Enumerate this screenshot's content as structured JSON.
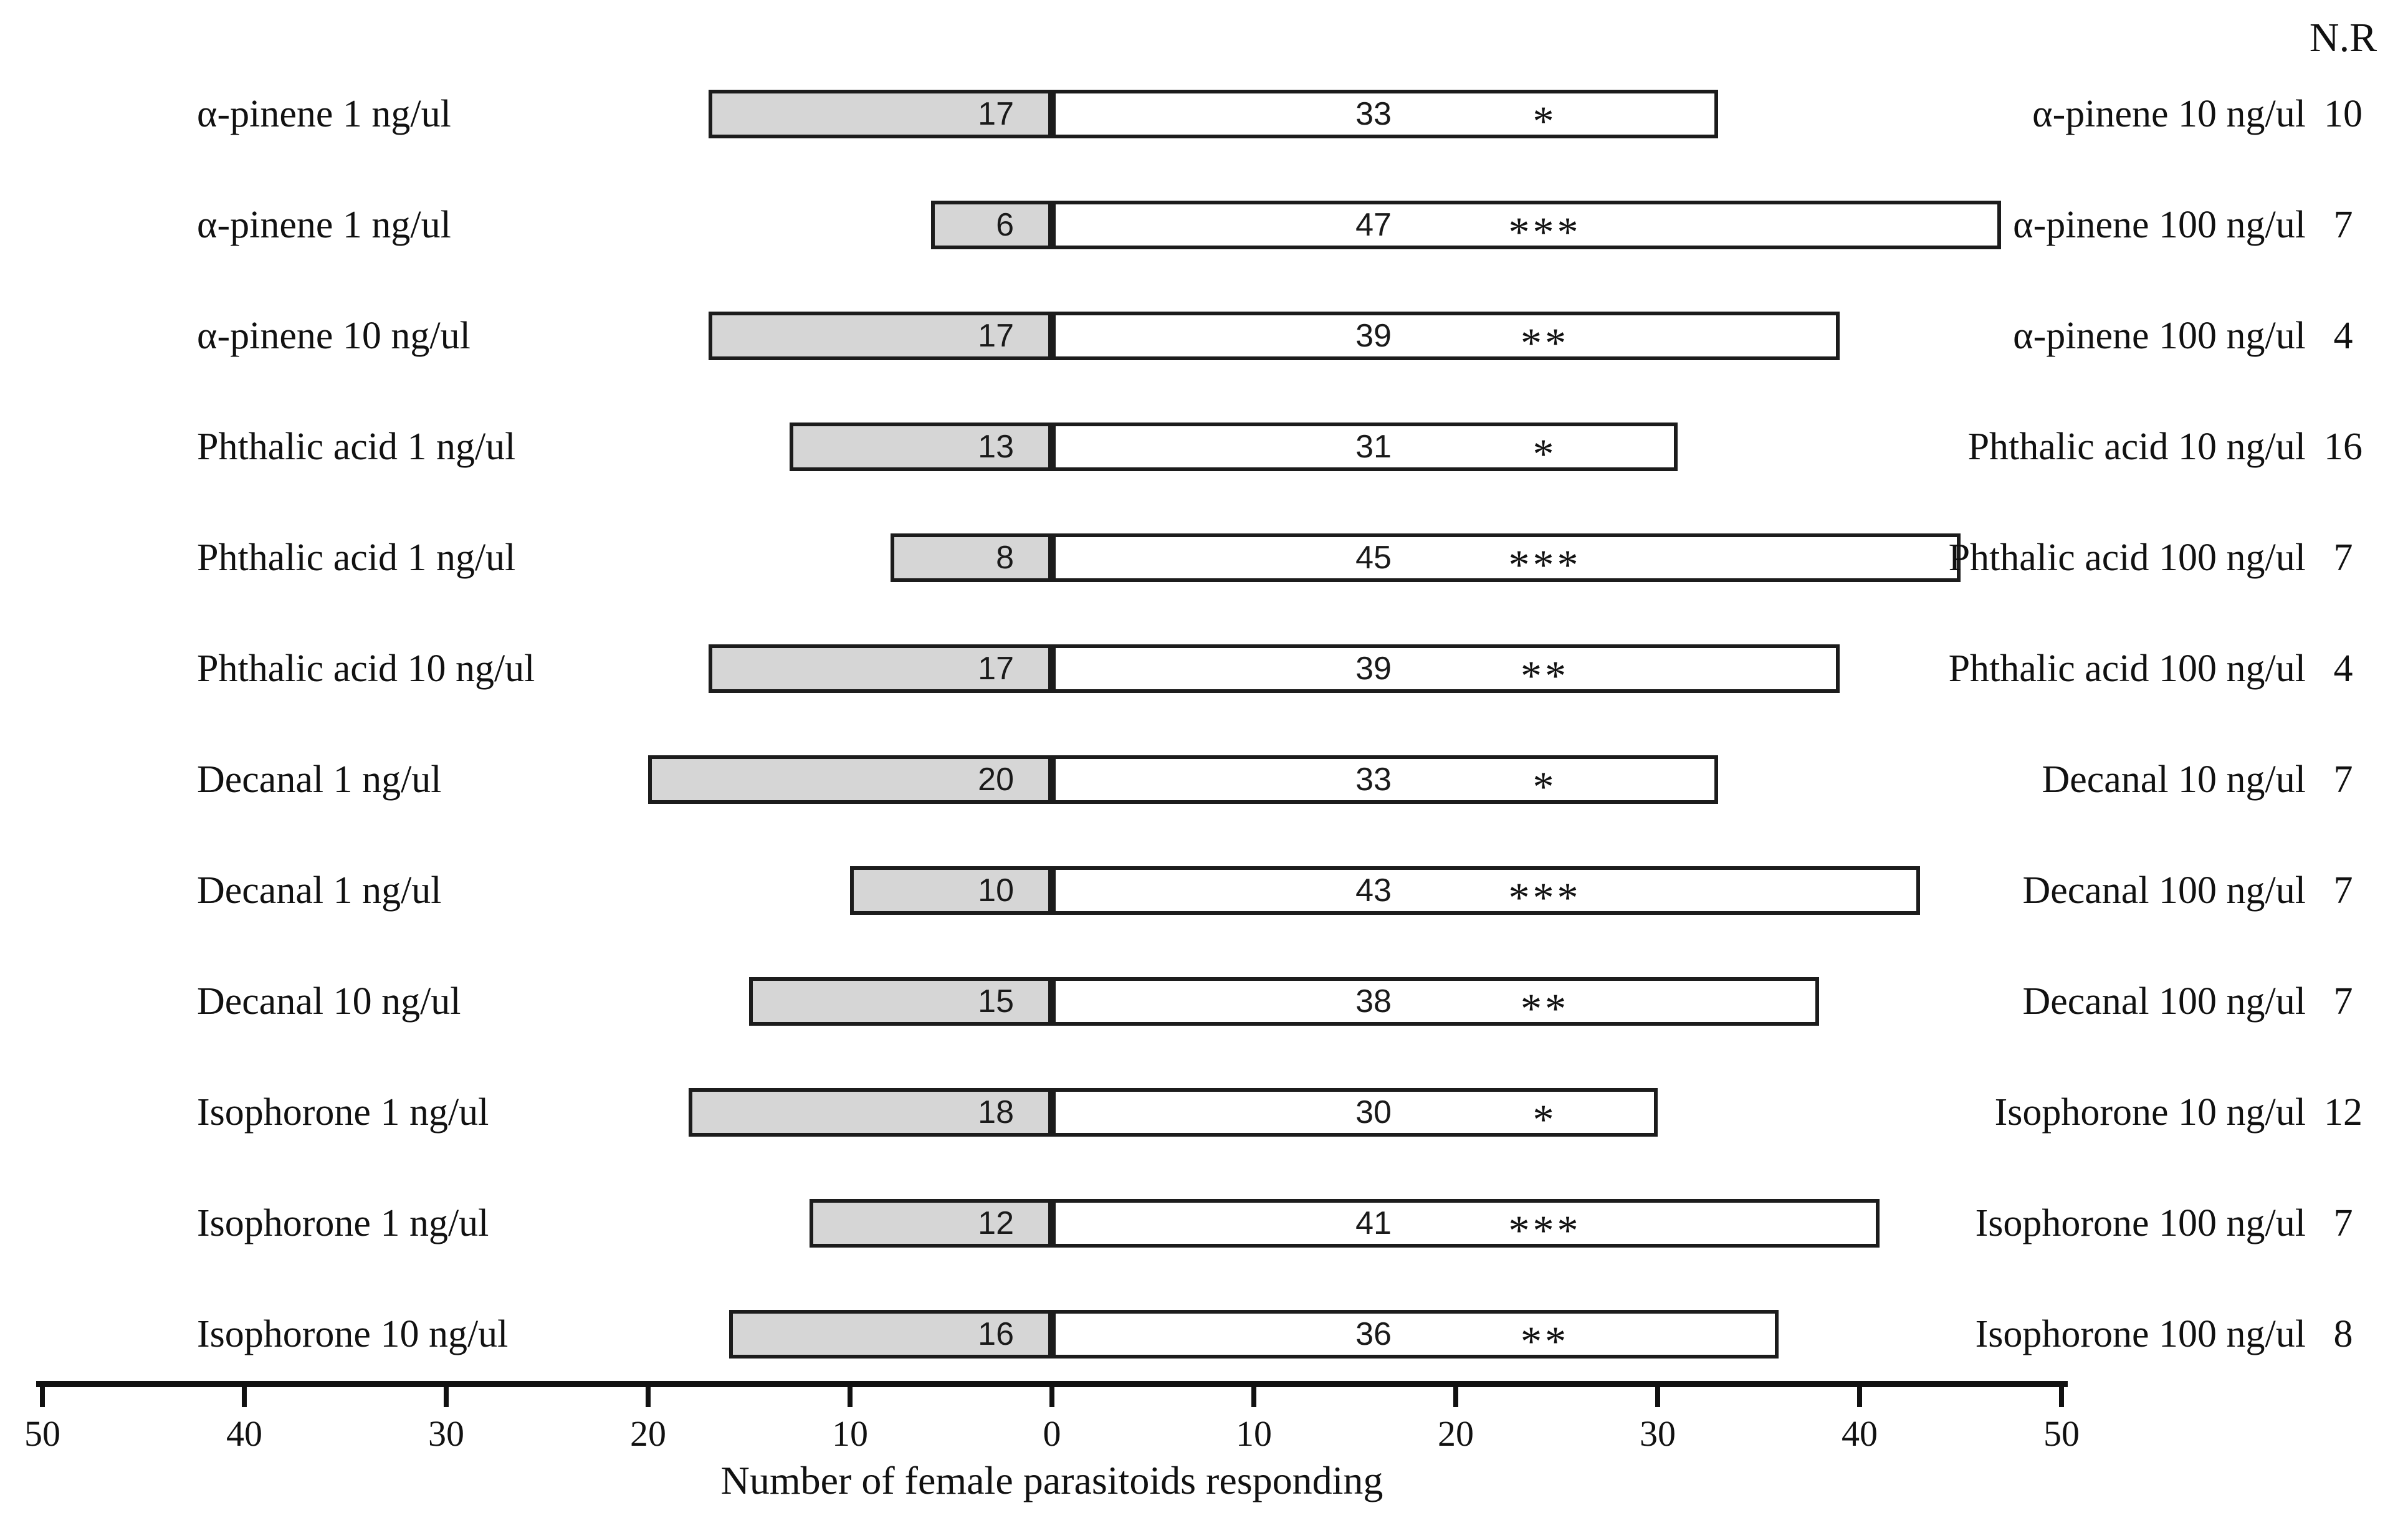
{
  "colors": {
    "bar_fill": "#d6d6d6",
    "bar_border": "#1c1c1c",
    "axis": "#111111",
    "text": "#111111"
  },
  "chart_data": {
    "type": "bar",
    "orientation": "horizontal-diverging",
    "title": "",
    "axis": {
      "label": "Number of female parasitoids responding",
      "tick_values": [
        50,
        40,
        30,
        20,
        10,
        0,
        10,
        20,
        30,
        40,
        50
      ],
      "range_each_side": [
        0,
        50
      ],
      "grid": false
    },
    "nr_column_header": "N.R",
    "rows": [
      {
        "left_label": "α-pinene 1 ng/ul",
        "left_value": 17,
        "right_value": 33,
        "significance": "*",
        "right_label": "α-pinene 10 ng/ul",
        "nr": 10
      },
      {
        "left_label": "α-pinene 1 ng/ul",
        "left_value": 6,
        "right_value": 47,
        "significance": "***",
        "right_label": "α-pinene 100 ng/ul",
        "nr": 7
      },
      {
        "left_label": "α-pinene 10 ng/ul",
        "left_value": 17,
        "right_value": 39,
        "significance": "**",
        "right_label": "α-pinene 100 ng/ul",
        "nr": 4
      },
      {
        "left_label": "Phthalic acid 1 ng/ul",
        "left_value": 13,
        "right_value": 31,
        "significance": "*",
        "right_label": "Phthalic acid 10 ng/ul",
        "nr": 16
      },
      {
        "left_label": "Phthalic acid 1 ng/ul",
        "left_value": 8,
        "right_value": 45,
        "significance": "***",
        "right_label": "Phthalic acid 100 ng/ul",
        "nr": 7
      },
      {
        "left_label": "Phthalic acid 10 ng/ul",
        "left_value": 17,
        "right_value": 39,
        "significance": "**",
        "right_label": "Phthalic acid 100 ng/ul",
        "nr": 4
      },
      {
        "left_label": "Decanal 1 ng/ul",
        "left_value": 20,
        "right_value": 33,
        "significance": "*",
        "right_label": "Decanal 10 ng/ul",
        "nr": 7
      },
      {
        "left_label": "Decanal 1 ng/ul",
        "left_value": 10,
        "right_value": 43,
        "significance": "***",
        "right_label": "Decanal 100 ng/ul",
        "nr": 7
      },
      {
        "left_label": "Decanal 10 ng/ul",
        "left_value": 15,
        "right_value": 38,
        "significance": "**",
        "right_label": "Decanal 100 ng/ul",
        "nr": 7
      },
      {
        "left_label": "Isophorone 1 ng/ul",
        "left_value": 18,
        "right_value": 30,
        "significance": "*",
        "right_label": "Isophorone 10 ng/ul",
        "nr": 12
      },
      {
        "left_label": "Isophorone 1 ng/ul",
        "left_value": 12,
        "right_value": 41,
        "significance": "***",
        "right_label": "Isophorone 100 ng/ul",
        "nr": 7
      },
      {
        "left_label": "Isophorone 10 ng/ul",
        "left_value": 16,
        "right_value": 36,
        "significance": "**",
        "right_label": "Isophorone 100 ng/ul",
        "nr": 8
      }
    ]
  }
}
